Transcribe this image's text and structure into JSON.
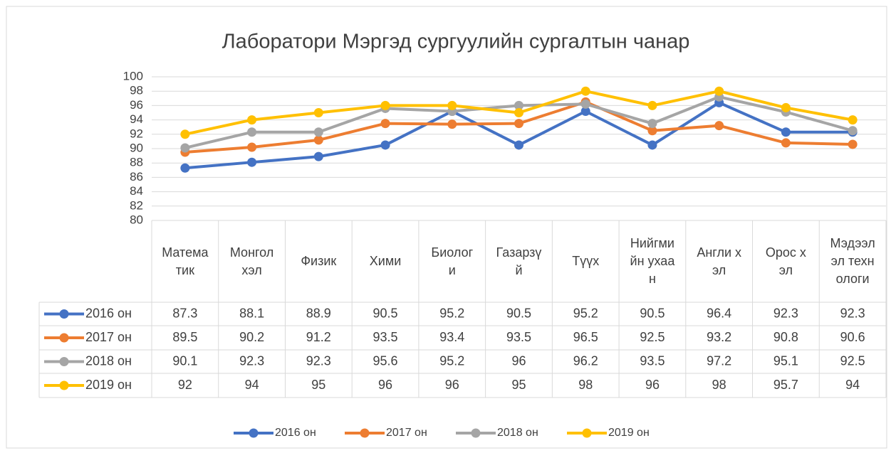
{
  "chart_data": {
    "type": "line",
    "title": "Лаборатори Мэргэд сургуулийн сургалтын чанар",
    "categories": [
      "Математик",
      "Монгол хэл",
      "Физик",
      "Хими",
      "Биологи",
      "Газарзүй",
      "Түүх",
      "Нийгмийн ухаан",
      "Англи хэл",
      "Орос хэл",
      "Мэдээлэл технологи"
    ],
    "series": [
      {
        "name": "2016 он",
        "color": "#4472c4",
        "values": [
          87.3,
          88.1,
          88.9,
          90.5,
          95.2,
          90.5,
          95.2,
          90.5,
          96.4,
          92.3,
          92.3
        ]
      },
      {
        "name": "2017 он",
        "color": "#ed7d31",
        "values": [
          89.5,
          90.2,
          91.2,
          93.5,
          93.4,
          93.5,
          96.5,
          92.5,
          93.2,
          90.8,
          90.6
        ]
      },
      {
        "name": "2018 он",
        "color": "#a5a5a5",
        "values": [
          90.1,
          92.3,
          92.3,
          95.6,
          95.2,
          96,
          96.2,
          93.5,
          97.2,
          95.1,
          92.5
        ]
      },
      {
        "name": "2019 он",
        "color": "#ffc000",
        "values": [
          92,
          94,
          95,
          96,
          96,
          95,
          98,
          96,
          98,
          95.7,
          94
        ]
      }
    ],
    "ylim": [
      80,
      100
    ],
    "yticks": [
      80,
      82,
      84,
      86,
      88,
      90,
      92,
      94,
      96,
      98,
      100
    ],
    "grid": true,
    "legend": "bottom",
    "data_table": true
  }
}
